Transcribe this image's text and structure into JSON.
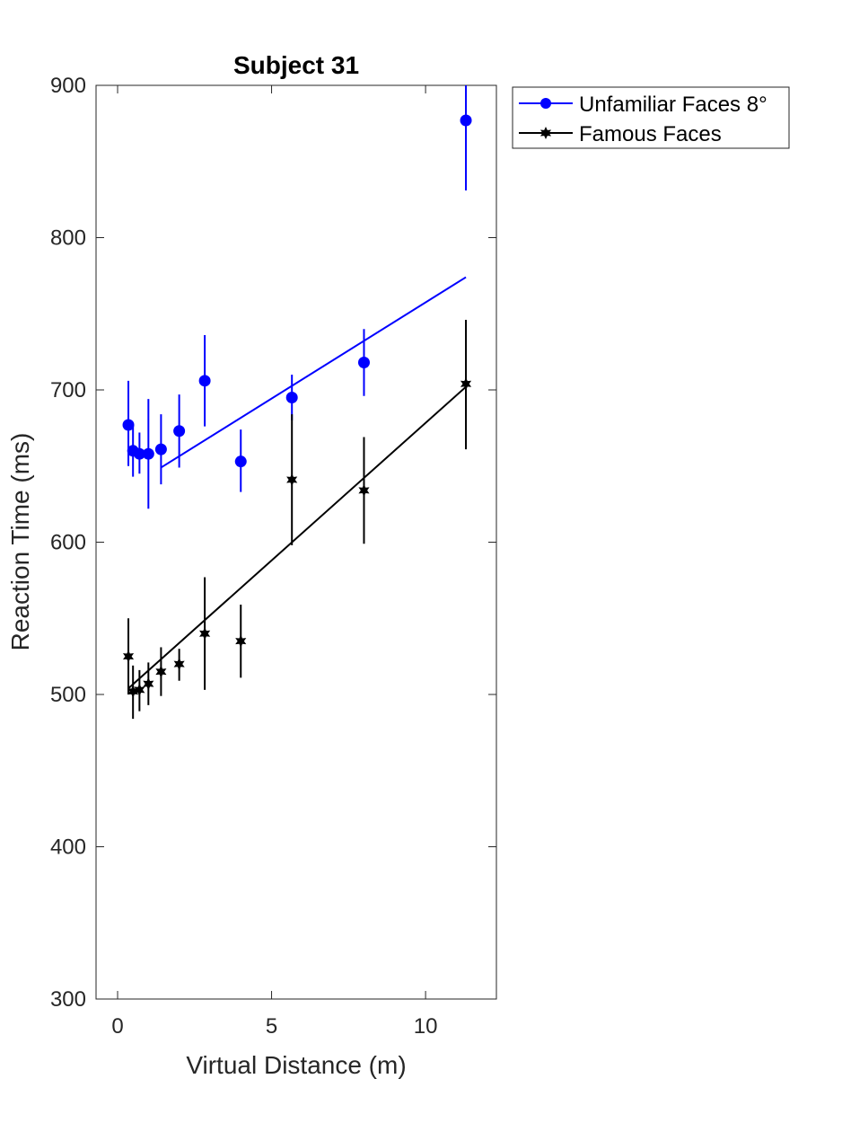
{
  "chart_data": {
    "type": "line",
    "title": "Subject 31",
    "xlabel": "Virtual Distance (m)",
    "ylabel": "Reaction Time (ms)",
    "xlim": [
      -0.7,
      12.3
    ],
    "ylim": [
      300,
      900
    ],
    "xticks": [
      0,
      5,
      10
    ],
    "yticks": [
      300,
      400,
      500,
      600,
      700,
      800,
      900
    ],
    "xtick_labels": [
      "0",
      "5",
      "10"
    ],
    "ytick_labels": [
      "300",
      "400",
      "500",
      "600",
      "700",
      "800",
      "900"
    ],
    "legend_position": "outside top-right",
    "series": [
      {
        "name": "Unfamiliar Faces 8°",
        "color": "#0000ff",
        "marker": "circle",
        "x": [
          0.35,
          0.5,
          0.71,
          1.0,
          1.41,
          2.0,
          2.83,
          4.0,
          5.66,
          8.0,
          11.31
        ],
        "y": [
          677,
          660,
          658,
          658,
          661,
          673,
          706,
          653,
          695,
          718,
          877
        ],
        "err_low": [
          650,
          643,
          645,
          622,
          638,
          649,
          676,
          633,
          680,
          696,
          831
        ],
        "err_high": [
          706,
          676,
          672,
          694,
          684,
          697,
          736,
          674,
          710,
          740,
          900
        ],
        "fit": {
          "x": [
            1.41,
            11.31
          ],
          "y": [
            649,
            774
          ]
        }
      },
      {
        "name": "Famous Faces",
        "color": "#000000",
        "marker": "hexagram",
        "x": [
          0.35,
          0.5,
          0.71,
          1.0,
          1.41,
          2.0,
          2.83,
          4.0,
          5.66,
          8.0,
          11.31
        ],
        "y": [
          525,
          502,
          503,
          507,
          515,
          520,
          540,
          535,
          641,
          634,
          704
        ],
        "err_low": [
          500,
          484,
          489,
          493,
          499,
          509,
          503,
          511,
          598,
          599,
          661
        ],
        "err_high": [
          550,
          519,
          516,
          521,
          531,
          530,
          577,
          559,
          684,
          669,
          746
        ],
        "fit": {
          "x": [
            0.35,
            11.31
          ],
          "y": [
            504,
            702
          ]
        }
      }
    ]
  }
}
